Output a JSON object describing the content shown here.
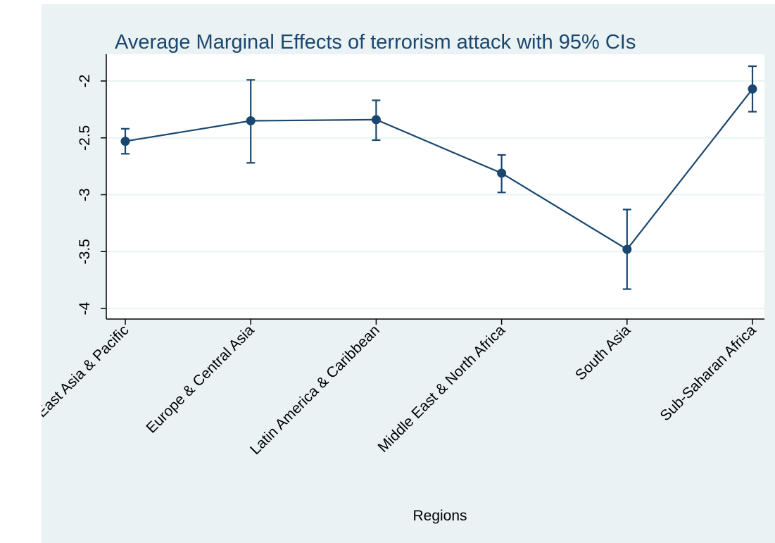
{
  "chart_data": {
    "type": "line",
    "title": "Average Marginal Effects of terrorism attack with 95% CIs",
    "xlabel": "Regions",
    "ylabel": "",
    "categories": [
      "East Asia & Pacific",
      "Europe & Central Asia",
      "Latin America & Caribbean",
      "Middle East & North Africa",
      "South Asia",
      "Sub-Saharan Africa"
    ],
    "series": [
      {
        "values": [
          -2.53,
          -2.35,
          -2.34,
          -2.81,
          -3.48,
          -2.07
        ],
        "ci_lower": [
          -2.64,
          -2.72,
          -2.52,
          -2.98,
          -3.83,
          -2.27
        ],
        "ci_upper": [
          -2.42,
          -1.99,
          -2.17,
          -2.65,
          -3.13,
          -1.87
        ]
      }
    ],
    "yticks": [
      -2,
      -2.5,
      -3,
      -3.5,
      -4
    ],
    "ytick_labels": [
      "-2",
      "-2.5",
      "-3",
      "-3.5",
      "-4"
    ],
    "ylim": [
      -4.1,
      -1.8
    ],
    "grid": true,
    "legend": "none",
    "colors": {
      "background": "#eaf2f3",
      "plot_area": "#ffffff",
      "series": "#1a476f",
      "title": "#1a476f",
      "gridline": "#eaf2f3"
    }
  }
}
